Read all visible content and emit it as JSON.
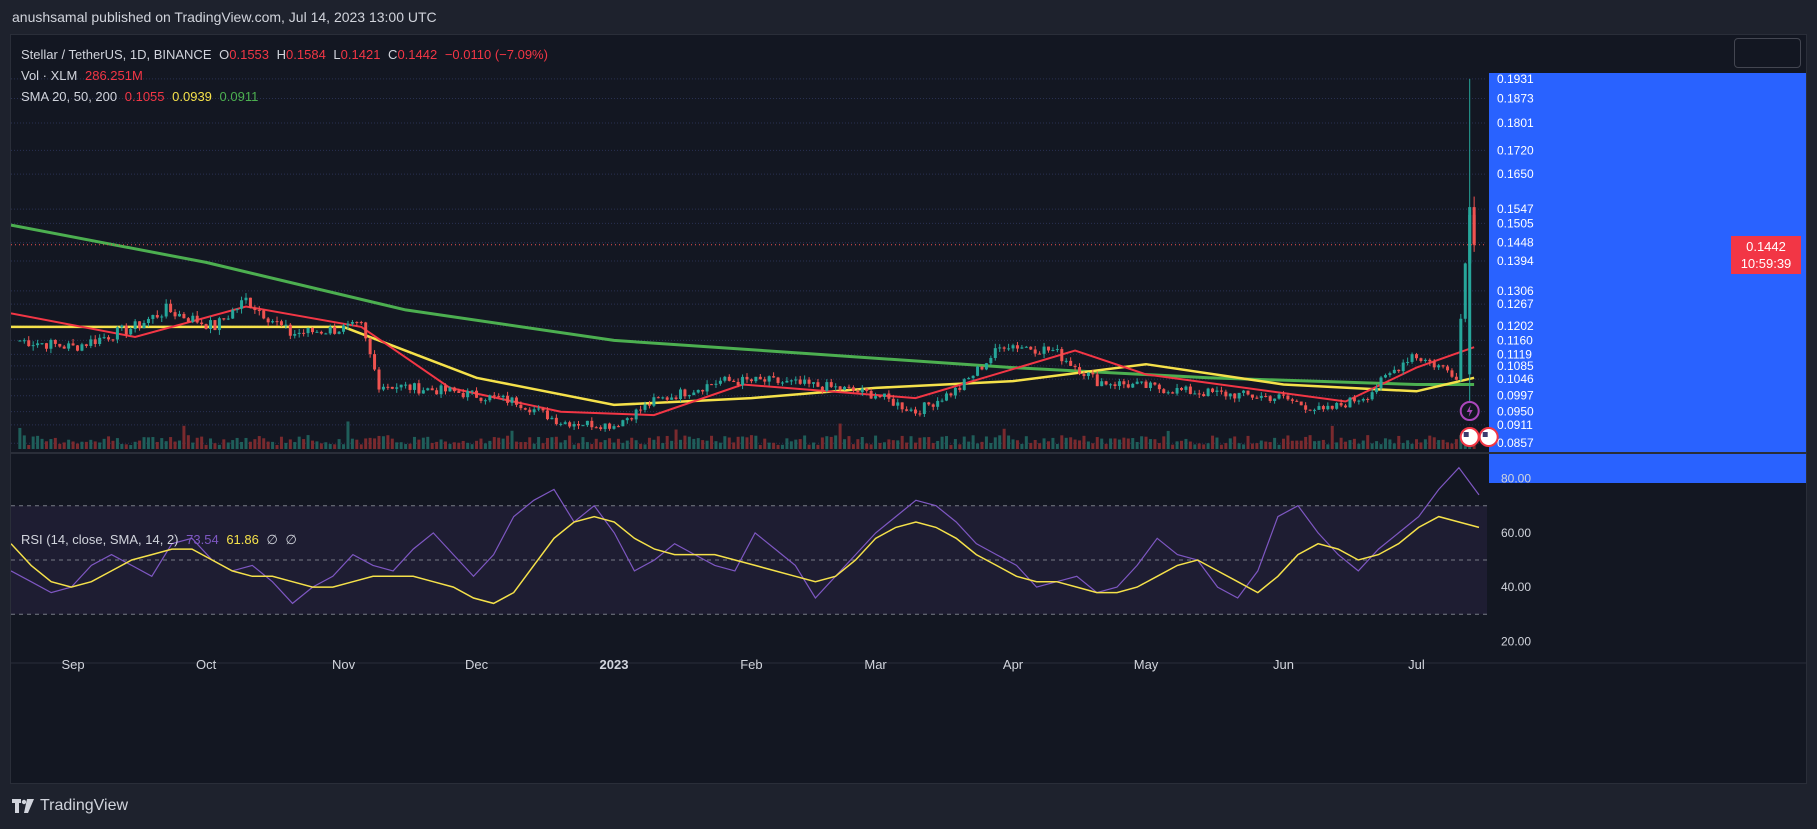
{
  "header": {
    "publisher": "anushsamal published on TradingView.com, Jul 14, 2023 13:00 UTC"
  },
  "legend": {
    "symbol": "Stellar / TetherUS, 1D, BINANCE",
    "o_label": "O",
    "o_value": "0.1553",
    "h_label": "H",
    "h_value": "0.1584",
    "l_label": "L",
    "l_value": "0.1421",
    "c_label": "C",
    "c_value": "0.1442",
    "change": "−0.0110 (−7.09%)",
    "vol_label": "Vol · XLM",
    "vol_value": "286.251M",
    "sma_label": "SMA 20, 50, 200",
    "sma20": "0.1055",
    "sma50": "0.0939",
    "sma200": "0.0911"
  },
  "rsi_legend": {
    "label": "RSI (14, close, SMA, 14, 2)",
    "rsi": "73.54",
    "sma": "61.86",
    "v3": "∅",
    "v4": "∅"
  },
  "price_tag": {
    "price": "0.1442",
    "countdown": "10:59:39"
  },
  "footer": {
    "brand": "TradingView"
  },
  "colors": {
    "up": "#26a69a",
    "down": "#ef5350",
    "sma20": "#f23645",
    "sma50": "#f5e14a",
    "sma200": "#4caf50",
    "rsi": "#7e57c2",
    "rsi_sma": "#f5e14a",
    "axis_highlight": "#2962ff"
  },
  "chart_data": [
    {
      "type": "candlestick",
      "title": "Stellar / TetherUS, 1D, BINANCE",
      "price_axis_labels": [
        "0.1931",
        "0.1873",
        "0.1801",
        "0.1720",
        "0.1650",
        "0.1547",
        "0.1505",
        "0.1448",
        "0.1394",
        "0.1306",
        "0.1267",
        "0.1202",
        "0.1160",
        "0.1119",
        "0.1085",
        "0.1046",
        "0.0997",
        "0.0950",
        "0.0911",
        "0.0857"
      ],
      "x_tick_labels": [
        "Sep",
        "Oct",
        "Nov",
        "Dec",
        "2023",
        "Feb",
        "Mar",
        "Apr",
        "May",
        "Jun",
        "Jul"
      ],
      "grid": true,
      "close_approx": [
        {
          "date": "2022-08-20",
          "close": 0.116
        },
        {
          "date": "2022-09-01",
          "close": 0.114
        },
        {
          "date": "2022-09-15",
          "close": 0.12
        },
        {
          "date": "2022-09-22",
          "close": 0.125
        },
        {
          "date": "2022-10-03",
          "close": 0.12
        },
        {
          "date": "2022-10-10",
          "close": 0.128
        },
        {
          "date": "2022-10-20",
          "close": 0.118
        },
        {
          "date": "2022-11-05",
          "close": 0.12
        },
        {
          "date": "2022-11-09",
          "close": 0.103
        },
        {
          "date": "2022-11-25",
          "close": 0.101
        },
        {
          "date": "2022-12-10",
          "close": 0.098
        },
        {
          "date": "2022-12-20",
          "close": 0.092
        },
        {
          "date": "2023-01-01",
          "close": 0.091
        },
        {
          "date": "2023-01-10",
          "close": 0.098
        },
        {
          "date": "2023-01-25",
          "close": 0.104
        },
        {
          "date": "2023-02-05",
          "close": 0.104
        },
        {
          "date": "2023-02-20",
          "close": 0.102
        },
        {
          "date": "2023-03-01",
          "close": 0.1
        },
        {
          "date": "2023-03-10",
          "close": 0.095
        },
        {
          "date": "2023-03-20",
          "close": 0.102
        },
        {
          "date": "2023-03-30",
          "close": 0.115
        },
        {
          "date": "2023-04-10",
          "close": 0.113
        },
        {
          "date": "2023-04-20",
          "close": 0.104
        },
        {
          "date": "2023-05-10",
          "close": 0.101
        },
        {
          "date": "2023-06-01",
          "close": 0.099
        },
        {
          "date": "2023-06-10",
          "close": 0.095
        },
        {
          "date": "2023-06-20",
          "close": 0.1
        },
        {
          "date": "2023-06-30",
          "close": 0.112
        },
        {
          "date": "2023-07-10",
          "close": 0.106
        },
        {
          "date": "2023-07-13",
          "close": 0.1553
        },
        {
          "date": "2023-07-14",
          "close": 0.1442
        }
      ],
      "series": [
        {
          "name": "SMA 20",
          "last": 0.1055
        },
        {
          "name": "SMA 50",
          "last": 0.0939
        },
        {
          "name": "SMA 200",
          "last": 0.0911
        }
      ],
      "current_price": 0.1442
    },
    {
      "type": "line",
      "title": "RSI (14, close, SMA, 14, 2)",
      "y_tick_labels": [
        "80.00",
        "60.00",
        "40.00",
        "20.00"
      ],
      "ylim": [
        15,
        85
      ],
      "bands": [
        30,
        50,
        70
      ],
      "series": [
        {
          "name": "RSI",
          "values": [
            46,
            42,
            38,
            40,
            48,
            52,
            48,
            44,
            56,
            58,
            50,
            46,
            48,
            42,
            34,
            40,
            44,
            52,
            48,
            46,
            54,
            60,
            52,
            44,
            52,
            66,
            72,
            76,
            64,
            70,
            60,
            46,
            50,
            56,
            52,
            48,
            46,
            60,
            54,
            48,
            36,
            44,
            52,
            60,
            66,
            72,
            70,
            64,
            56,
            52,
            48,
            40,
            42,
            44,
            38,
            40,
            48,
            58,
            52,
            50,
            40,
            36,
            46,
            66,
            70,
            60,
            52,
            46,
            54,
            60,
            66,
            76,
            84,
            74
          ]
        },
        {
          "name": "RSI SMA",
          "values": [
            56,
            48,
            42,
            40,
            42,
            46,
            50,
            52,
            54,
            54,
            50,
            46,
            44,
            44,
            42,
            40,
            40,
            42,
            44,
            44,
            44,
            42,
            40,
            36,
            34,
            38,
            48,
            58,
            64,
            66,
            64,
            58,
            54,
            52,
            52,
            52,
            50,
            48,
            46,
            44,
            42,
            44,
            50,
            58,
            62,
            64,
            62,
            58,
            52,
            48,
            44,
            42,
            42,
            40,
            38,
            38,
            40,
            44,
            48,
            50,
            46,
            42,
            38,
            44,
            52,
            56,
            54,
            50,
            52,
            56,
            62,
            66,
            64,
            62
          ]
        }
      ],
      "last_rsi": 73.54,
      "last_sma": 61.86
    }
  ]
}
